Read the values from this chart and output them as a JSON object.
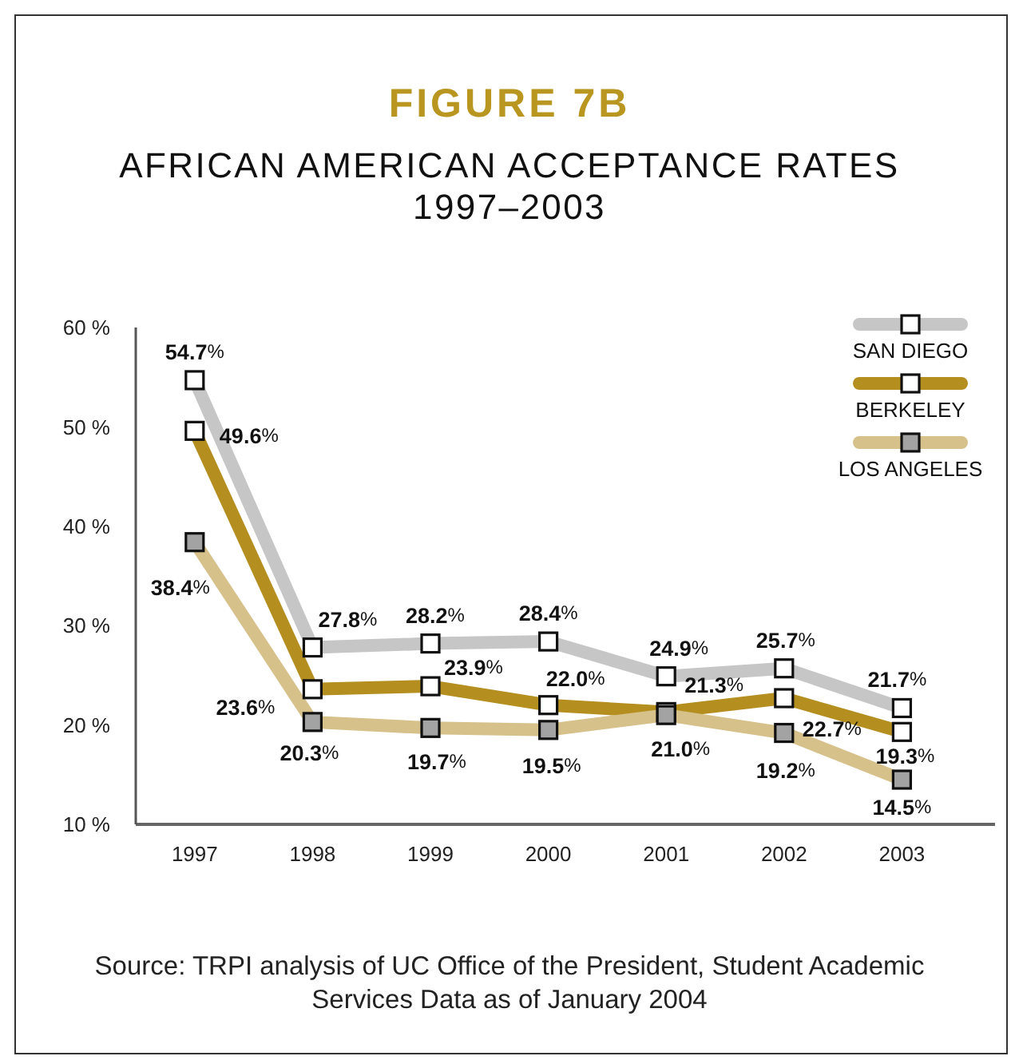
{
  "chart_data": {
    "type": "line",
    "title": "FIGURE 7B",
    "subtitle": "AFRICAN AMERICAN ACCEPTANCE RATES 1997–2003",
    "categories": [
      "1997",
      "1998",
      "1999",
      "2000",
      "2001",
      "2002",
      "2003"
    ],
    "series": [
      {
        "name": "SAN DIEGO",
        "color": "#c6c6c6",
        "values": [
          54.7,
          27.8,
          28.2,
          28.4,
          24.9,
          25.7,
          21.7
        ],
        "value_labels": [
          "54.7%",
          "27.8%",
          "28.2%",
          "28.4%",
          "24.9%",
          "25.7%",
          "21.7%"
        ]
      },
      {
        "name": "BERKELEY",
        "color": "#b48f1f",
        "values": [
          49.6,
          23.6,
          23.9,
          22.0,
          21.3,
          22.7,
          19.3
        ],
        "value_labels": [
          "49.6%",
          "23.6%",
          "23.9%",
          "22.0%",
          "21.3%",
          "22.7%",
          "19.3%"
        ]
      },
      {
        "name": "LOS ANGELES",
        "color": "#d5c189",
        "values": [
          38.4,
          20.3,
          19.7,
          19.5,
          21.0,
          19.2,
          14.5
        ],
        "value_labels": [
          "38.4%",
          "20.3%",
          "19.7%",
          "19.5%",
          "21.0%",
          "19.2%",
          "14.5%"
        ]
      }
    ],
    "ylim": [
      10,
      60
    ],
    "yticks": [
      {
        "value": 10,
        "label": "10 %"
      },
      {
        "value": 20,
        "label": "20 %"
      },
      {
        "value": 30,
        "label": "30 %"
      },
      {
        "value": 40,
        "label": "40 %"
      },
      {
        "value": 50,
        "label": "50 %"
      },
      {
        "value": 60,
        "label": "60 %"
      }
    ],
    "legend": "top right",
    "marker": "square",
    "line_style": "solid",
    "annotations": [
      "Source: TRPI analysis of UC Office of the President, Student Academic Services Data as of January 2004"
    ]
  }
}
